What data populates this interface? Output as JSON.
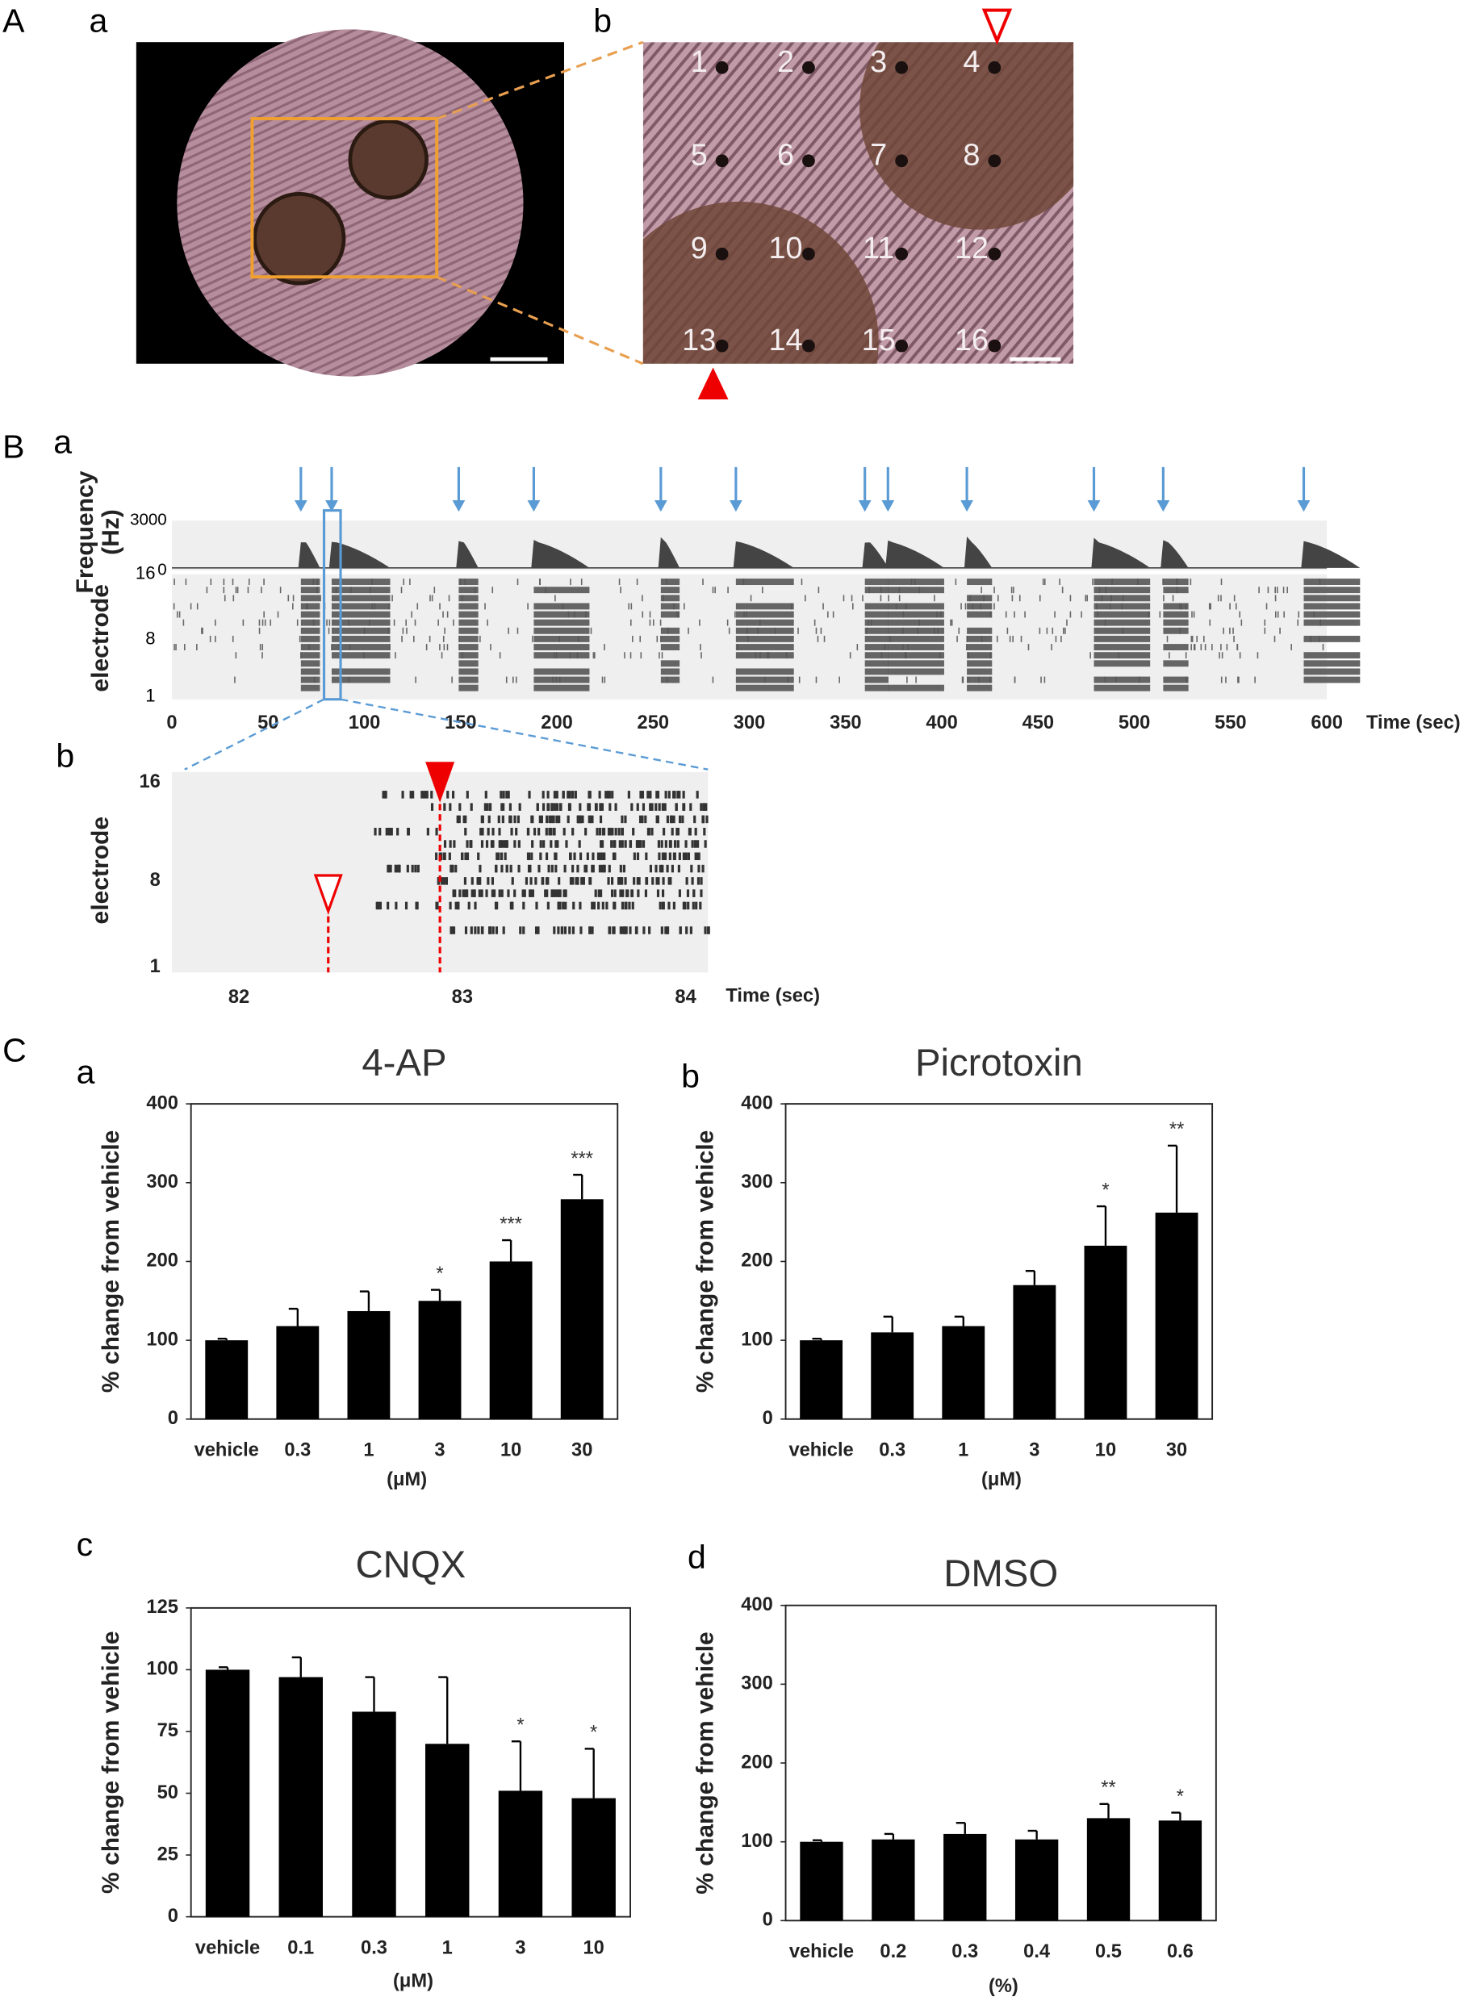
{
  "figure": {
    "panel_A": {
      "label": "A",
      "a": {
        "label": "a"
      },
      "b": {
        "label": "b",
        "electrodes": [
          "1",
          "2",
          "3",
          "4",
          "5",
          "6",
          "7",
          "8",
          "9",
          "10",
          "11",
          "12",
          "13",
          "14",
          "15",
          "16"
        ]
      }
    },
    "panel_B": {
      "label": "B",
      "a": {
        "label": "a",
        "hist_ylabel": [
          "Frequency",
          "(Hz)"
        ],
        "hist_yticks": [
          0,
          3000
        ],
        "raster_ylabel": "electrode",
        "raster_yticks": [
          1,
          8,
          16
        ],
        "xlim": [
          0,
          600
        ],
        "xticks": [
          0,
          50,
          100,
          150,
          200,
          250,
          300,
          350,
          400,
          450,
          500,
          550,
          600
        ],
        "xlabel": "Time (sec)",
        "burst_times": [
          67,
          83,
          149,
          188,
          254,
          293,
          360,
          372,
          413,
          479,
          515,
          588
        ]
      },
      "b": {
        "label": "b",
        "ylabel": "electrode",
        "yticks": [
          1,
          8,
          16
        ],
        "ylim": [
          1,
          16
        ],
        "xlim": [
          81.7,
          84.1
        ],
        "xticks": [
          82,
          83,
          84
        ],
        "xlabel": "Time (sec)",
        "onset_times": [
          82.4,
          82.9
        ]
      }
    },
    "panel_C": {
      "label": "C"
    }
  },
  "chart_data": [
    {
      "type": "bar",
      "panel": "a",
      "title": "4-AP",
      "y_label": "% change from vehicle",
      "x_label": "(μM)",
      "categories": [
        "vehicle",
        "0.3",
        "1",
        "3",
        "10",
        "30"
      ],
      "values": [
        100,
        118,
        137,
        150,
        200,
        279
      ],
      "errors": [
        2,
        22,
        25,
        14,
        27,
        31
      ],
      "annotations": [
        null,
        null,
        null,
        "*",
        "***",
        "***"
      ],
      "ylim": [
        0,
        400
      ],
      "yticks": [
        0,
        100,
        200,
        300,
        400
      ],
      "color": "#000000"
    },
    {
      "type": "bar",
      "panel": "b",
      "title": "Picrotoxin",
      "y_label": "% change from vehicle",
      "x_label": "(μM)",
      "categories": [
        "vehicle",
        "0.3",
        "1",
        "3",
        "10",
        "30"
      ],
      "values": [
        100,
        110,
        118,
        170,
        220,
        262
      ],
      "errors": [
        2,
        20,
        12,
        18,
        50,
        85
      ],
      "annotations": [
        null,
        null,
        null,
        null,
        "*",
        "**"
      ],
      "ylim": [
        0,
        400
      ],
      "yticks": [
        0,
        100,
        200,
        300,
        400
      ],
      "color": "#000000"
    },
    {
      "type": "bar",
      "panel": "c",
      "title": "CNQX",
      "y_label": "% change from vehicle",
      "x_label": "(μM)",
      "categories": [
        "vehicle",
        "0.1",
        "0.3",
        "1",
        "3",
        "10"
      ],
      "values": [
        100,
        97,
        83,
        70,
        51,
        48
      ],
      "errors": [
        1,
        8,
        14,
        27,
        20,
        20
      ],
      "annotations": [
        null,
        null,
        null,
        null,
        "*",
        "*"
      ],
      "ylim": [
        0,
        125
      ],
      "yticks": [
        0,
        25,
        50,
        75,
        100,
        125
      ],
      "color": "#000000"
    },
    {
      "type": "bar",
      "panel": "d",
      "title": "DMSO",
      "y_label": "% change from vehicle",
      "x_label": "(%)",
      "categories": [
        "vehicle",
        "0.2",
        "0.3",
        "0.4",
        "0.5",
        "0.6"
      ],
      "values": [
        100,
        103,
        110,
        103,
        130,
        127
      ],
      "errors": [
        2,
        7,
        14,
        11,
        18,
        10
      ],
      "annotations": [
        null,
        null,
        null,
        null,
        "**",
        "*"
      ],
      "ylim": [
        0,
        400
      ],
      "yticks": [
        0,
        100,
        200,
        300,
        400
      ],
      "color": "#000000"
    }
  ]
}
